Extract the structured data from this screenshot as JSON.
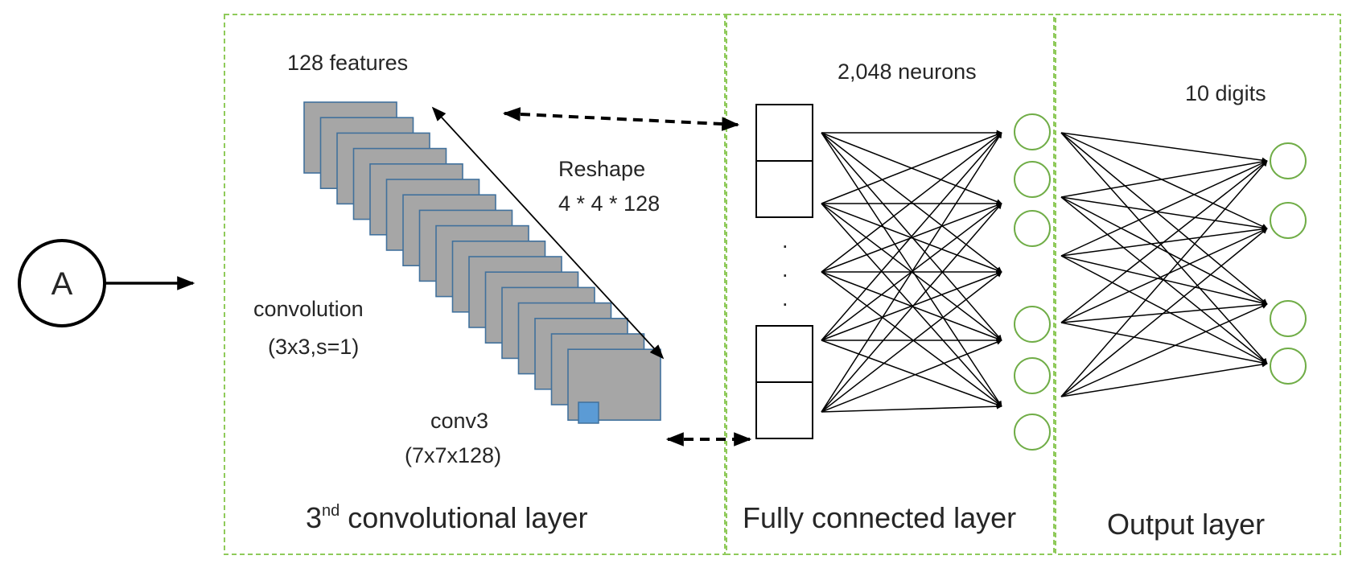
{
  "node_a": {
    "label": "A"
  },
  "conv_panel": {
    "features_label": "128 features",
    "reshape_label": "Reshape",
    "reshape_dims": "4 * 4 * 128",
    "convolution_label": "convolution",
    "convolution_params": "(3x3,s=1)",
    "conv3_label": "conv3",
    "conv3_dims": "(7x7x128)",
    "title_prefix": "3",
    "title_sup": "nd",
    "title_rest": " convolutional layer"
  },
  "fc_panel": {
    "neurons_label": "2,048 neurons",
    "ellipsis": ".",
    "title": "Fully connected layer"
  },
  "output_panel": {
    "digits_label": "10 digits",
    "title": "Output layer"
  },
  "colors": {
    "panel_border": "#8fca5a",
    "feature_map_fill": "#a6a6a6",
    "feature_map_stroke": "#41719c",
    "kernel_fill": "#5b9bd5",
    "neuron_stroke": "#70ad47",
    "line": "#000000"
  }
}
